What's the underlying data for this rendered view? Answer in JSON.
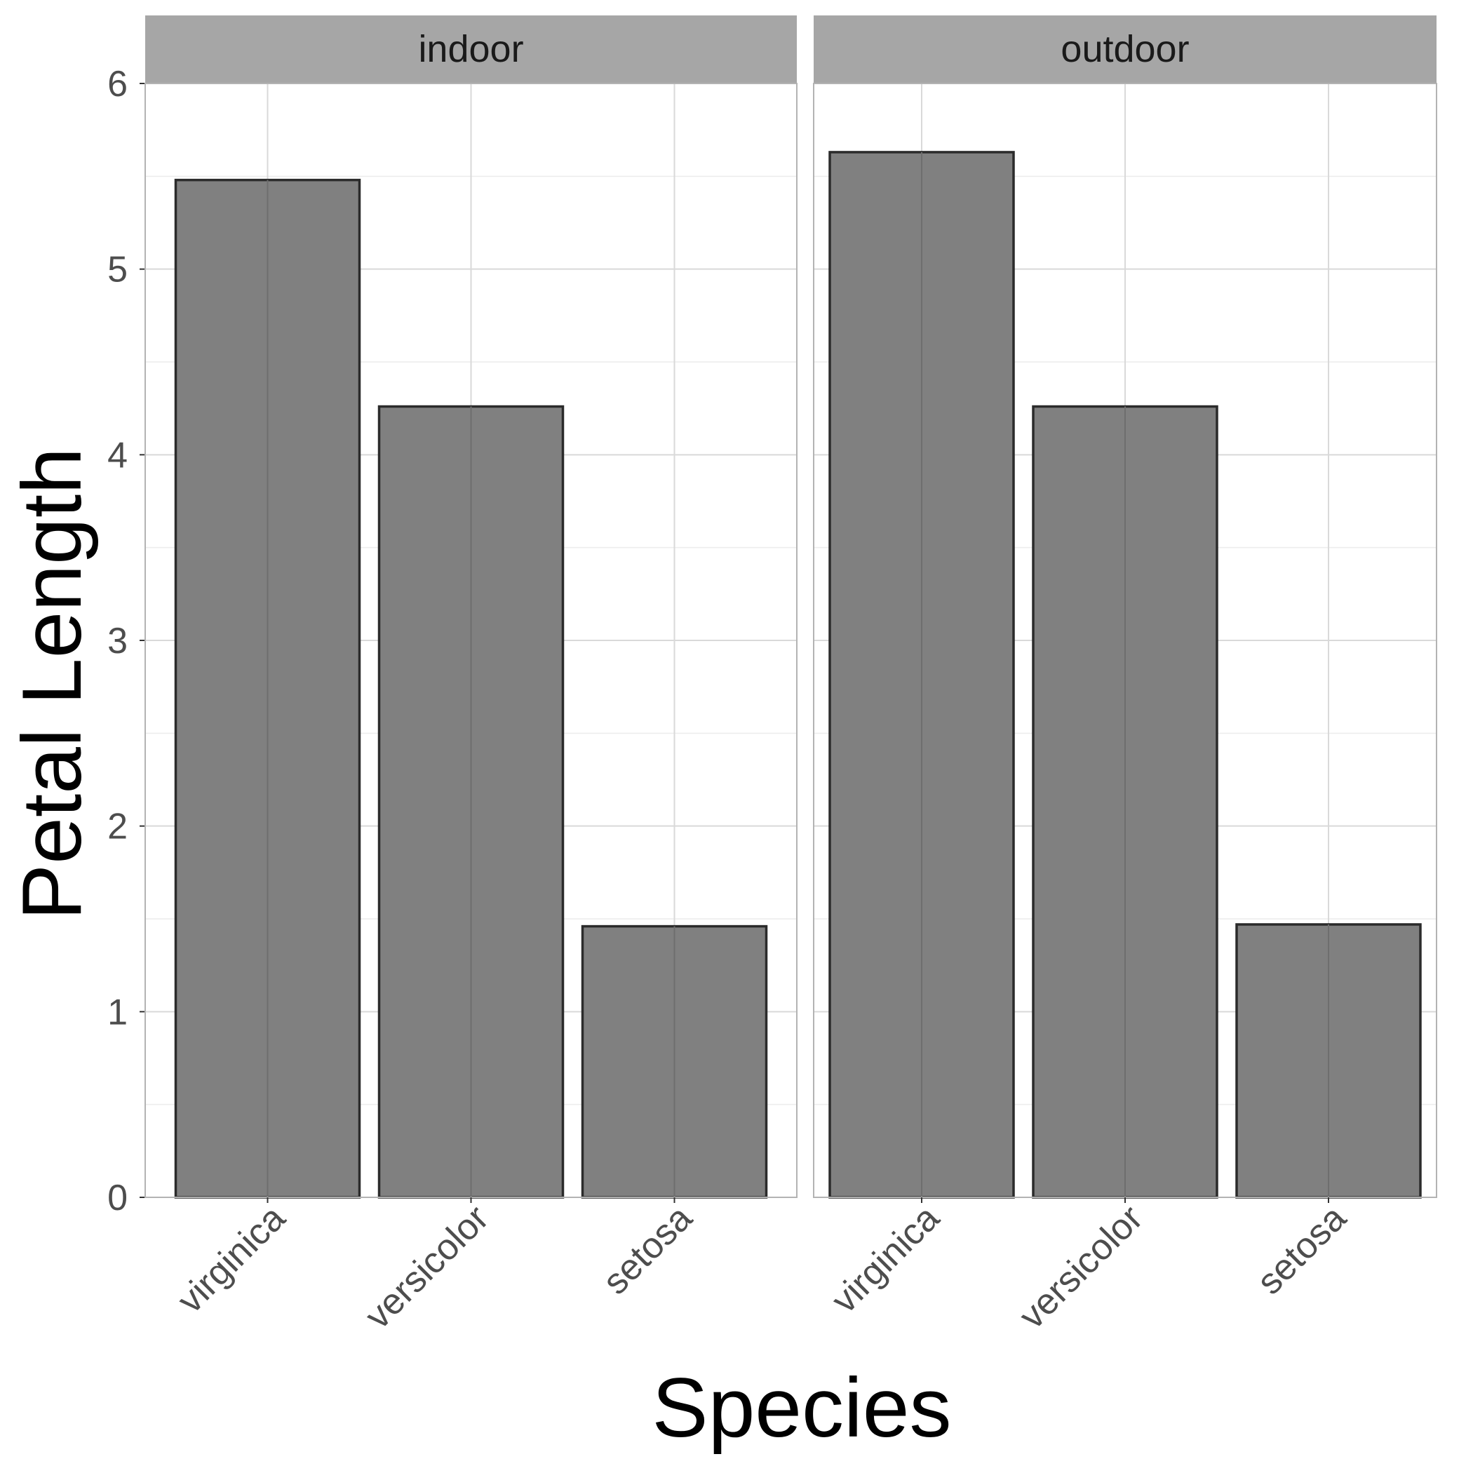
{
  "chart_data": {
    "type": "bar",
    "facets": [
      "indoor",
      "outdoor"
    ],
    "categories": [
      "virginica",
      "versicolor",
      "setosa"
    ],
    "series": [
      {
        "facet": "indoor",
        "values": [
          5.48,
          4.26,
          1.46
        ]
      },
      {
        "facet": "outdoor",
        "values": [
          5.63,
          4.26,
          1.47
        ]
      }
    ],
    "xlabel": "Species",
    "ylabel": "Petal Length",
    "ylim": [
      0,
      6
    ],
    "yticks": [
      "0",
      "1",
      "2",
      "3",
      "4",
      "5",
      "6"
    ],
    "grid": true,
    "colors": {
      "bar_fill": "#808080",
      "bar_stroke": "#2b2b2b",
      "strip_fill": "#a6a6a6",
      "grid": "#d9d9d9",
      "panel_border": "#b3b3b3"
    }
  }
}
